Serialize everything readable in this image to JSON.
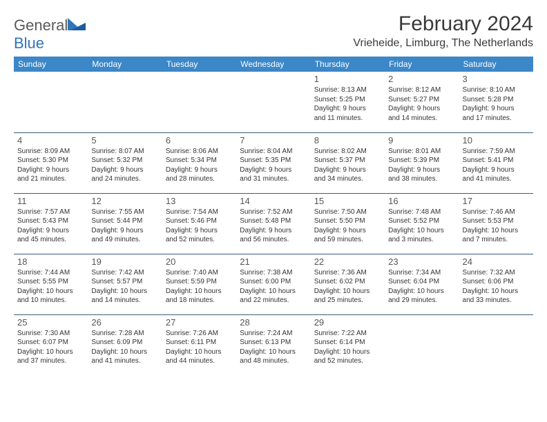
{
  "logo": {
    "general": "General",
    "blue": "Blue"
  },
  "title": "February 2024",
  "location": "Vrieheide, Limburg, The Netherlands",
  "colors": {
    "header_bg": "#3b87c8",
    "header_text": "#ffffff",
    "border": "#3b5a7a",
    "title_color": "#3a3a3a",
    "logo_gray": "#5a5a5a",
    "logo_blue": "#2f76b8"
  },
  "weekdays": [
    "Sunday",
    "Monday",
    "Tuesday",
    "Wednesday",
    "Thursday",
    "Friday",
    "Saturday"
  ],
  "weeks": [
    [
      null,
      null,
      null,
      null,
      {
        "n": "1",
        "sr": "Sunrise: 8:13 AM",
        "ss": "Sunset: 5:25 PM",
        "d1": "Daylight: 9 hours",
        "d2": "and 11 minutes."
      },
      {
        "n": "2",
        "sr": "Sunrise: 8:12 AM",
        "ss": "Sunset: 5:27 PM",
        "d1": "Daylight: 9 hours",
        "d2": "and 14 minutes."
      },
      {
        "n": "3",
        "sr": "Sunrise: 8:10 AM",
        "ss": "Sunset: 5:28 PM",
        "d1": "Daylight: 9 hours",
        "d2": "and 17 minutes."
      }
    ],
    [
      {
        "n": "4",
        "sr": "Sunrise: 8:09 AM",
        "ss": "Sunset: 5:30 PM",
        "d1": "Daylight: 9 hours",
        "d2": "and 21 minutes."
      },
      {
        "n": "5",
        "sr": "Sunrise: 8:07 AM",
        "ss": "Sunset: 5:32 PM",
        "d1": "Daylight: 9 hours",
        "d2": "and 24 minutes."
      },
      {
        "n": "6",
        "sr": "Sunrise: 8:06 AM",
        "ss": "Sunset: 5:34 PM",
        "d1": "Daylight: 9 hours",
        "d2": "and 28 minutes."
      },
      {
        "n": "7",
        "sr": "Sunrise: 8:04 AM",
        "ss": "Sunset: 5:35 PM",
        "d1": "Daylight: 9 hours",
        "d2": "and 31 minutes."
      },
      {
        "n": "8",
        "sr": "Sunrise: 8:02 AM",
        "ss": "Sunset: 5:37 PM",
        "d1": "Daylight: 9 hours",
        "d2": "and 34 minutes."
      },
      {
        "n": "9",
        "sr": "Sunrise: 8:01 AM",
        "ss": "Sunset: 5:39 PM",
        "d1": "Daylight: 9 hours",
        "d2": "and 38 minutes."
      },
      {
        "n": "10",
        "sr": "Sunrise: 7:59 AM",
        "ss": "Sunset: 5:41 PM",
        "d1": "Daylight: 9 hours",
        "d2": "and 41 minutes."
      }
    ],
    [
      {
        "n": "11",
        "sr": "Sunrise: 7:57 AM",
        "ss": "Sunset: 5:43 PM",
        "d1": "Daylight: 9 hours",
        "d2": "and 45 minutes."
      },
      {
        "n": "12",
        "sr": "Sunrise: 7:55 AM",
        "ss": "Sunset: 5:44 PM",
        "d1": "Daylight: 9 hours",
        "d2": "and 49 minutes."
      },
      {
        "n": "13",
        "sr": "Sunrise: 7:54 AM",
        "ss": "Sunset: 5:46 PM",
        "d1": "Daylight: 9 hours",
        "d2": "and 52 minutes."
      },
      {
        "n": "14",
        "sr": "Sunrise: 7:52 AM",
        "ss": "Sunset: 5:48 PM",
        "d1": "Daylight: 9 hours",
        "d2": "and 56 minutes."
      },
      {
        "n": "15",
        "sr": "Sunrise: 7:50 AM",
        "ss": "Sunset: 5:50 PM",
        "d1": "Daylight: 9 hours",
        "d2": "and 59 minutes."
      },
      {
        "n": "16",
        "sr": "Sunrise: 7:48 AM",
        "ss": "Sunset: 5:52 PM",
        "d1": "Daylight: 10 hours",
        "d2": "and 3 minutes."
      },
      {
        "n": "17",
        "sr": "Sunrise: 7:46 AM",
        "ss": "Sunset: 5:53 PM",
        "d1": "Daylight: 10 hours",
        "d2": "and 7 minutes."
      }
    ],
    [
      {
        "n": "18",
        "sr": "Sunrise: 7:44 AM",
        "ss": "Sunset: 5:55 PM",
        "d1": "Daylight: 10 hours",
        "d2": "and 10 minutes."
      },
      {
        "n": "19",
        "sr": "Sunrise: 7:42 AM",
        "ss": "Sunset: 5:57 PM",
        "d1": "Daylight: 10 hours",
        "d2": "and 14 minutes."
      },
      {
        "n": "20",
        "sr": "Sunrise: 7:40 AM",
        "ss": "Sunset: 5:59 PM",
        "d1": "Daylight: 10 hours",
        "d2": "and 18 minutes."
      },
      {
        "n": "21",
        "sr": "Sunrise: 7:38 AM",
        "ss": "Sunset: 6:00 PM",
        "d1": "Daylight: 10 hours",
        "d2": "and 22 minutes."
      },
      {
        "n": "22",
        "sr": "Sunrise: 7:36 AM",
        "ss": "Sunset: 6:02 PM",
        "d1": "Daylight: 10 hours",
        "d2": "and 25 minutes."
      },
      {
        "n": "23",
        "sr": "Sunrise: 7:34 AM",
        "ss": "Sunset: 6:04 PM",
        "d1": "Daylight: 10 hours",
        "d2": "and 29 minutes."
      },
      {
        "n": "24",
        "sr": "Sunrise: 7:32 AM",
        "ss": "Sunset: 6:06 PM",
        "d1": "Daylight: 10 hours",
        "d2": "and 33 minutes."
      }
    ],
    [
      {
        "n": "25",
        "sr": "Sunrise: 7:30 AM",
        "ss": "Sunset: 6:07 PM",
        "d1": "Daylight: 10 hours",
        "d2": "and 37 minutes."
      },
      {
        "n": "26",
        "sr": "Sunrise: 7:28 AM",
        "ss": "Sunset: 6:09 PM",
        "d1": "Daylight: 10 hours",
        "d2": "and 41 minutes."
      },
      {
        "n": "27",
        "sr": "Sunrise: 7:26 AM",
        "ss": "Sunset: 6:11 PM",
        "d1": "Daylight: 10 hours",
        "d2": "and 44 minutes."
      },
      {
        "n": "28",
        "sr": "Sunrise: 7:24 AM",
        "ss": "Sunset: 6:13 PM",
        "d1": "Daylight: 10 hours",
        "d2": "and 48 minutes."
      },
      {
        "n": "29",
        "sr": "Sunrise: 7:22 AM",
        "ss": "Sunset: 6:14 PM",
        "d1": "Daylight: 10 hours",
        "d2": "and 52 minutes."
      },
      null,
      null
    ]
  ]
}
